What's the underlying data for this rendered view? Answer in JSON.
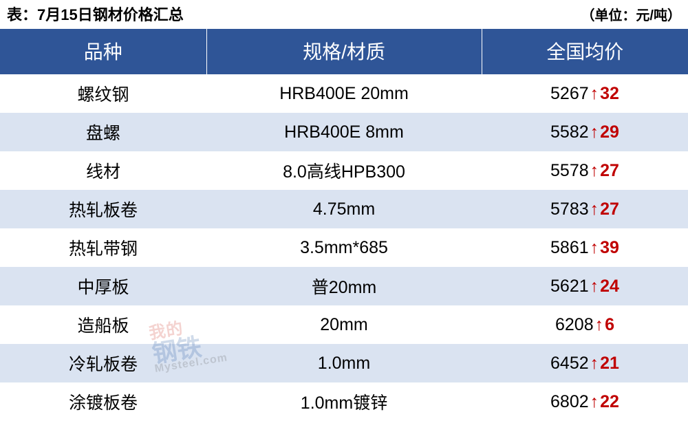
{
  "caption": {
    "title": "表：7月15日钢材价格汇总",
    "unit": "（单位：元/吨）"
  },
  "table": {
    "header_bg": "#2f5597",
    "header_fg": "#ffffff",
    "row_odd_bg": "#ffffff",
    "row_even_bg": "#dae3f1",
    "up_color": "#c00000",
    "col_widths_pct": [
      30,
      40,
      30
    ],
    "columns": [
      "品种",
      "规格/材质",
      "全国均价"
    ],
    "rows": [
      {
        "name": "螺纹钢",
        "spec": "HRB400E 20mm",
        "price": 5267,
        "dir": "up",
        "delta": 32
      },
      {
        "name": "盘螺",
        "spec": "HRB400E 8mm",
        "price": 5582,
        "dir": "up",
        "delta": 29
      },
      {
        "name": "线材",
        "spec": "8.0高线HPB300",
        "price": 5578,
        "dir": "up",
        "delta": 27
      },
      {
        "name": "热轧板卷",
        "spec": "4.75mm",
        "price": 5783,
        "dir": "up",
        "delta": 27
      },
      {
        "name": "热轧带钢",
        "spec": "3.5mm*685",
        "price": 5861,
        "dir": "up",
        "delta": 39
      },
      {
        "name": "中厚板",
        "spec": "普20mm",
        "price": 5621,
        "dir": "up",
        "delta": 24
      },
      {
        "name": "造船板",
        "spec": "20mm",
        "price": 6208,
        "dir": "up",
        "delta": 6
      },
      {
        "name": "冷轧板卷",
        "spec": "1.0mm",
        "price": 6452,
        "dir": "up",
        "delta": 21
      },
      {
        "name": "涂镀板卷",
        "spec": "1.0mm镀锌",
        "price": 6802,
        "dir": "up",
        "delta": 22
      }
    ]
  },
  "watermark": {
    "line1": "我的",
    "line2": "钢铁",
    "line3": "Mysteel.com"
  }
}
